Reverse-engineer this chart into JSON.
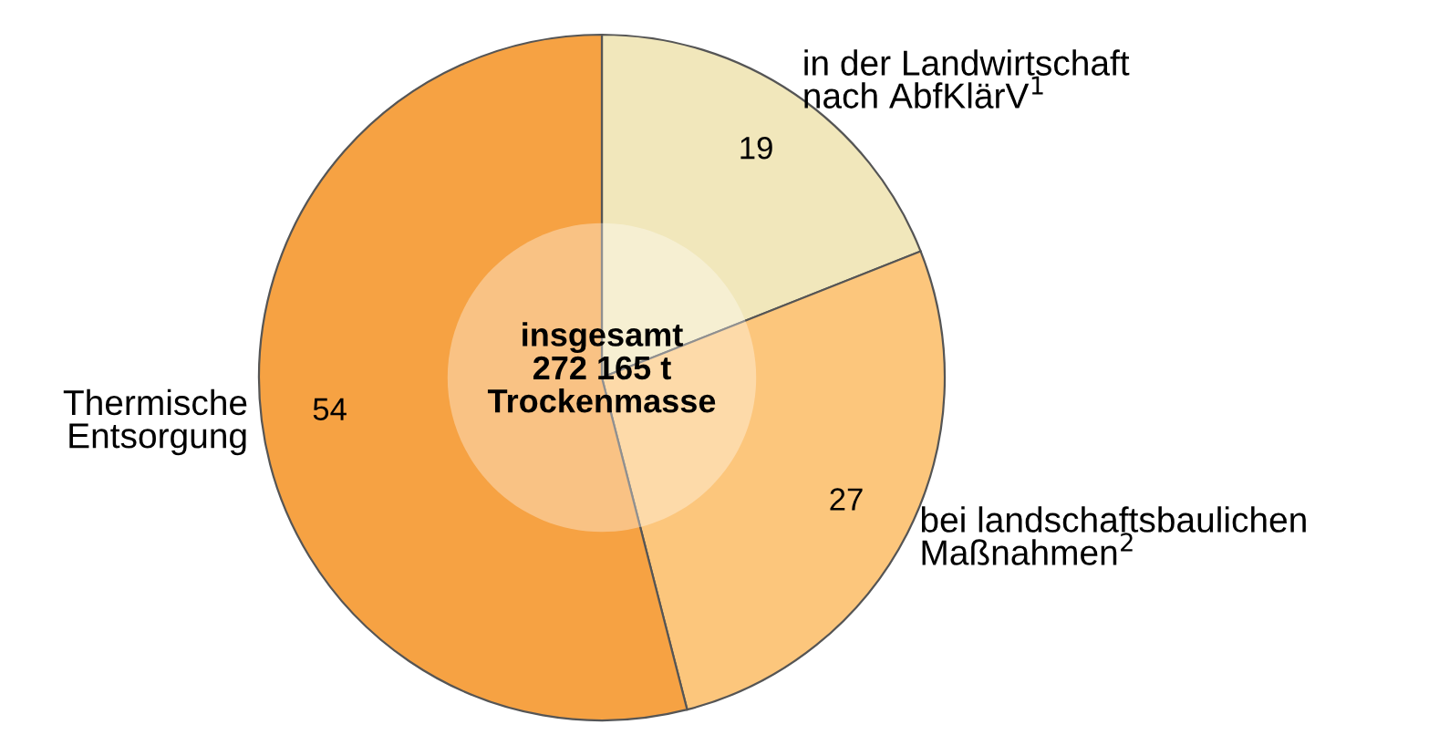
{
  "chart_data": {
    "type": "donut",
    "categories": [
      "in der Landwirtschaft\nnach AbfKlärV$^{1}$",
      "bei landschaftsbaulichen\nMaßnahmen$^{2}$",
      "Thermische\nEntsorgung"
    ],
    "values": [
      19,
      27,
      54
    ],
    "colors": [
      "#f1e7bb",
      "#fcc67c",
      "#f6a243"
    ],
    "data_labels": true,
    "annotations": [
      "insgesamt\n272 165 t\nTrockenmasse"
    ]
  }
}
